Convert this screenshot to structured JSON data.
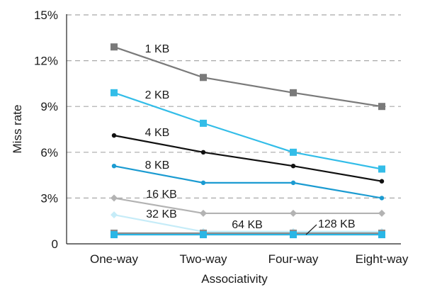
{
  "chart_data": {
    "type": "line",
    "xlabel": "Associativity",
    "ylabel": "Miss rate",
    "categories": [
      "One-way",
      "Two-way",
      "Four-way",
      "Eight-way"
    ],
    "ylim": [
      0,
      15
    ],
    "yticks": [
      0,
      3,
      6,
      9,
      12,
      15
    ],
    "ytick_labels": [
      "0",
      "3%",
      "6%",
      "9%",
      "12%",
      "15%"
    ],
    "grid": "horizontal dashed",
    "series": [
      {
        "name": "1 KB",
        "values": [
          12.9,
          10.9,
          9.9,
          9.0
        ],
        "color": "#7a7a7a",
        "marker": "square"
      },
      {
        "name": "2 KB",
        "values": [
          9.9,
          7.9,
          6.0,
          4.9
        ],
        "color": "#33bde8",
        "marker": "square"
      },
      {
        "name": "4 KB",
        "values": [
          7.1,
          6.0,
          5.1,
          4.1
        ],
        "color": "#111111",
        "marker": "circle"
      },
      {
        "name": "8 KB",
        "values": [
          5.1,
          4.0,
          4.0,
          3.0
        ],
        "color": "#1b9bd1",
        "marker": "circle"
      },
      {
        "name": "16 KB",
        "values": [
          3.0,
          2.0,
          2.0,
          2.0
        ],
        "color": "#b3b3b3",
        "marker": "diamond"
      },
      {
        "name": "32 KB",
        "values": [
          1.9,
          0.8,
          0.8,
          0.8
        ],
        "color": "#c6ecf8",
        "marker": "diamond"
      },
      {
        "name": "64 KB",
        "values": [
          0.7,
          0.7,
          0.7,
          0.7
        ],
        "color": "#8c8c8c",
        "marker": "square"
      },
      {
        "name": "128 KB",
        "values": [
          0.6,
          0.6,
          0.6,
          0.6
        ],
        "color": "#29b6e6",
        "marker": "square"
      }
    ]
  }
}
